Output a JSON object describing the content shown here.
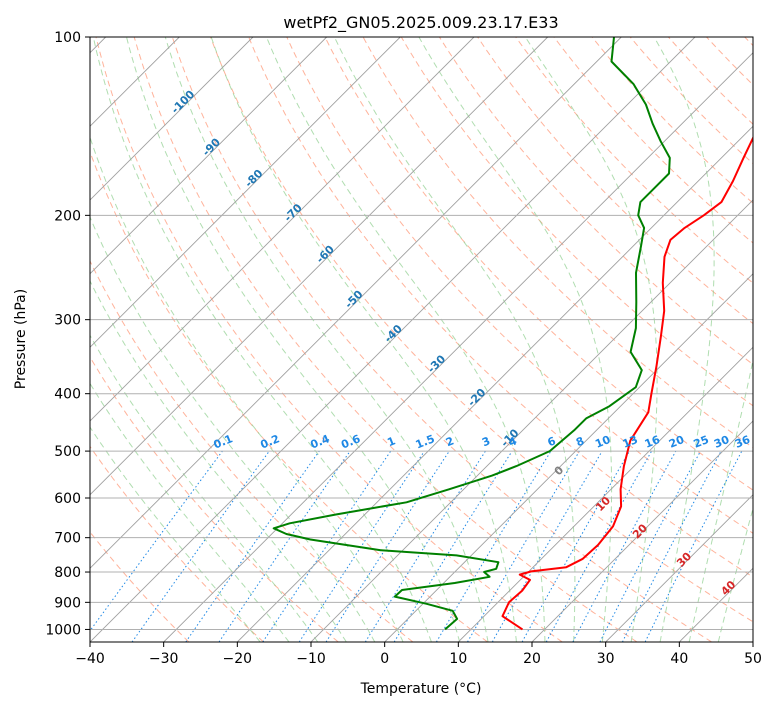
{
  "chart_data": {
    "type": "line",
    "subtype": "skew-t log-p",
    "title": "wetPf2_GN05.2025.009.23.17.E33",
    "xlabel": "Temperature (°C)",
    "ylabel": "Pressure (hPa)",
    "xlim": [
      -40,
      50
    ],
    "ylim": [
      1050,
      100
    ],
    "y_scale": "log",
    "grid": true,
    "x_ticks": [
      -40,
      -30,
      -20,
      -10,
      0,
      10,
      20,
      30,
      40,
      50
    ],
    "y_ticks": [
      100,
      200,
      300,
      400,
      500,
      600,
      700,
      800,
      900,
      1000
    ],
    "isotherm_labels": [
      "-100",
      "-90",
      "-80",
      "-70",
      "-60",
      "-50",
      "-40",
      "-30",
      "-20",
      "-10"
    ],
    "mixing_ratio_labels": [
      "0.1",
      "0.2",
      "0.4",
      "0.6",
      "1",
      "1.5",
      "2",
      "3",
      "4",
      "6",
      "8",
      "10",
      "13",
      "16",
      "20",
      "25",
      "30",
      "36"
    ],
    "moist_adiabat_labels": [
      "0",
      "10",
      "20",
      "30",
      "40"
    ],
    "colors": {
      "temperature": "#ff0000",
      "dewpoint": "#008000",
      "isotherm_label": "#1f77b4",
      "mixing_ratio": "#1e88e5",
      "moist_adiabat_label": "#d62728",
      "dry_adiabat": "#ff9a7a",
      "moist_adiabat": "#8fce8f",
      "skew_line": "#a0a0a0"
    },
    "series": [
      {
        "name": "Temperature",
        "points": [
          {
            "p": 1000,
            "t": 17.0
          },
          {
            "p": 950,
            "t": 12.5
          },
          {
            "p": 900,
            "t": 11.5
          },
          {
            "p": 860,
            "t": 11.7
          },
          {
            "p": 825,
            "t": 11.3
          },
          {
            "p": 808,
            "t": 9.2
          },
          {
            "p": 798,
            "t": 10.3
          },
          {
            "p": 785,
            "t": 14.5
          },
          {
            "p": 760,
            "t": 15.6
          },
          {
            "p": 720,
            "t": 15.8
          },
          {
            "p": 670,
            "t": 15.3
          },
          {
            "p": 620,
            "t": 13.7
          },
          {
            "p": 580,
            "t": 11.3
          },
          {
            "p": 530,
            "t": 8.6
          },
          {
            "p": 480,
            "t": 6.0
          },
          {
            "p": 430,
            "t": 4.6
          },
          {
            "p": 400,
            "t": 2.5
          },
          {
            "p": 360,
            "t": -0.5
          },
          {
            "p": 320,
            "t": -4.0
          },
          {
            "p": 290,
            "t": -7.0
          },
          {
            "p": 260,
            "t": -11.0
          },
          {
            "p": 235,
            "t": -14.3
          },
          {
            "p": 220,
            "t": -15.8
          },
          {
            "p": 210,
            "t": -15.5
          },
          {
            "p": 200,
            "t": -14.6
          },
          {
            "p": 190,
            "t": -14.0
          },
          {
            "p": 175,
            "t": -15.3
          },
          {
            "p": 160,
            "t": -17.0
          },
          {
            "p": 145,
            "t": -18.8
          },
          {
            "p": 130,
            "t": -21.2
          },
          {
            "p": 120,
            "t": -24.5
          },
          {
            "p": 110,
            "t": -28.0
          },
          {
            "p": 100,
            "t": -31.8
          }
        ]
      },
      {
        "name": "Dewpoint",
        "points": [
          {
            "p": 1000,
            "t": 6.5
          },
          {
            "p": 960,
            "t": 6.7
          },
          {
            "p": 930,
            "t": 5.0
          },
          {
            "p": 905,
            "t": 0.5
          },
          {
            "p": 880,
            "t": -4.8
          },
          {
            "p": 858,
            "t": -4.7
          },
          {
            "p": 835,
            "t": 1.5
          },
          {
            "p": 815,
            "t": 5.4
          },
          {
            "p": 800,
            "t": 4.0
          },
          {
            "p": 790,
            "t": 5.2
          },
          {
            "p": 770,
            "t": 4.6
          },
          {
            "p": 750,
            "t": -2.0
          },
          {
            "p": 735,
            "t": -13.0
          },
          {
            "p": 705,
            "t": -24.0
          },
          {
            "p": 690,
            "t": -28.0
          },
          {
            "p": 675,
            "t": -30.5
          },
          {
            "p": 662,
            "t": -29.0
          },
          {
            "p": 640,
            "t": -24.0
          },
          {
            "p": 610,
            "t": -16.0
          },
          {
            "p": 580,
            "t": -12.0
          },
          {
            "p": 550,
            "t": -8.0
          },
          {
            "p": 530,
            "t": -6.0
          },
          {
            "p": 500,
            "t": -3.5
          },
          {
            "p": 460,
            "t": -3.0
          },
          {
            "p": 440,
            "t": -3.0
          },
          {
            "p": 420,
            "t": -1.5
          },
          {
            "p": 390,
            "t": -0.5
          },
          {
            "p": 365,
            "t": -2.0
          },
          {
            "p": 340,
            "t": -6.0
          },
          {
            "p": 310,
            "t": -8.5
          },
          {
            "p": 280,
            "t": -12.0
          },
          {
            "p": 250,
            "t": -16.0
          },
          {
            "p": 225,
            "t": -19.0
          },
          {
            "p": 210,
            "t": -21.0
          },
          {
            "p": 200,
            "t": -23.5
          },
          {
            "p": 190,
            "t": -25.0
          },
          {
            "p": 180,
            "t": -25.0
          },
          {
            "p": 170,
            "t": -25.0
          },
          {
            "p": 160,
            "t": -27.0
          },
          {
            "p": 150,
            "t": -30.5
          },
          {
            "p": 140,
            "t": -34.0
          },
          {
            "p": 130,
            "t": -37.5
          },
          {
            "p": 120,
            "t": -42.0
          },
          {
            "p": 110,
            "t": -48.0
          },
          {
            "p": 100,
            "t": -51.0
          }
        ]
      }
    ]
  }
}
